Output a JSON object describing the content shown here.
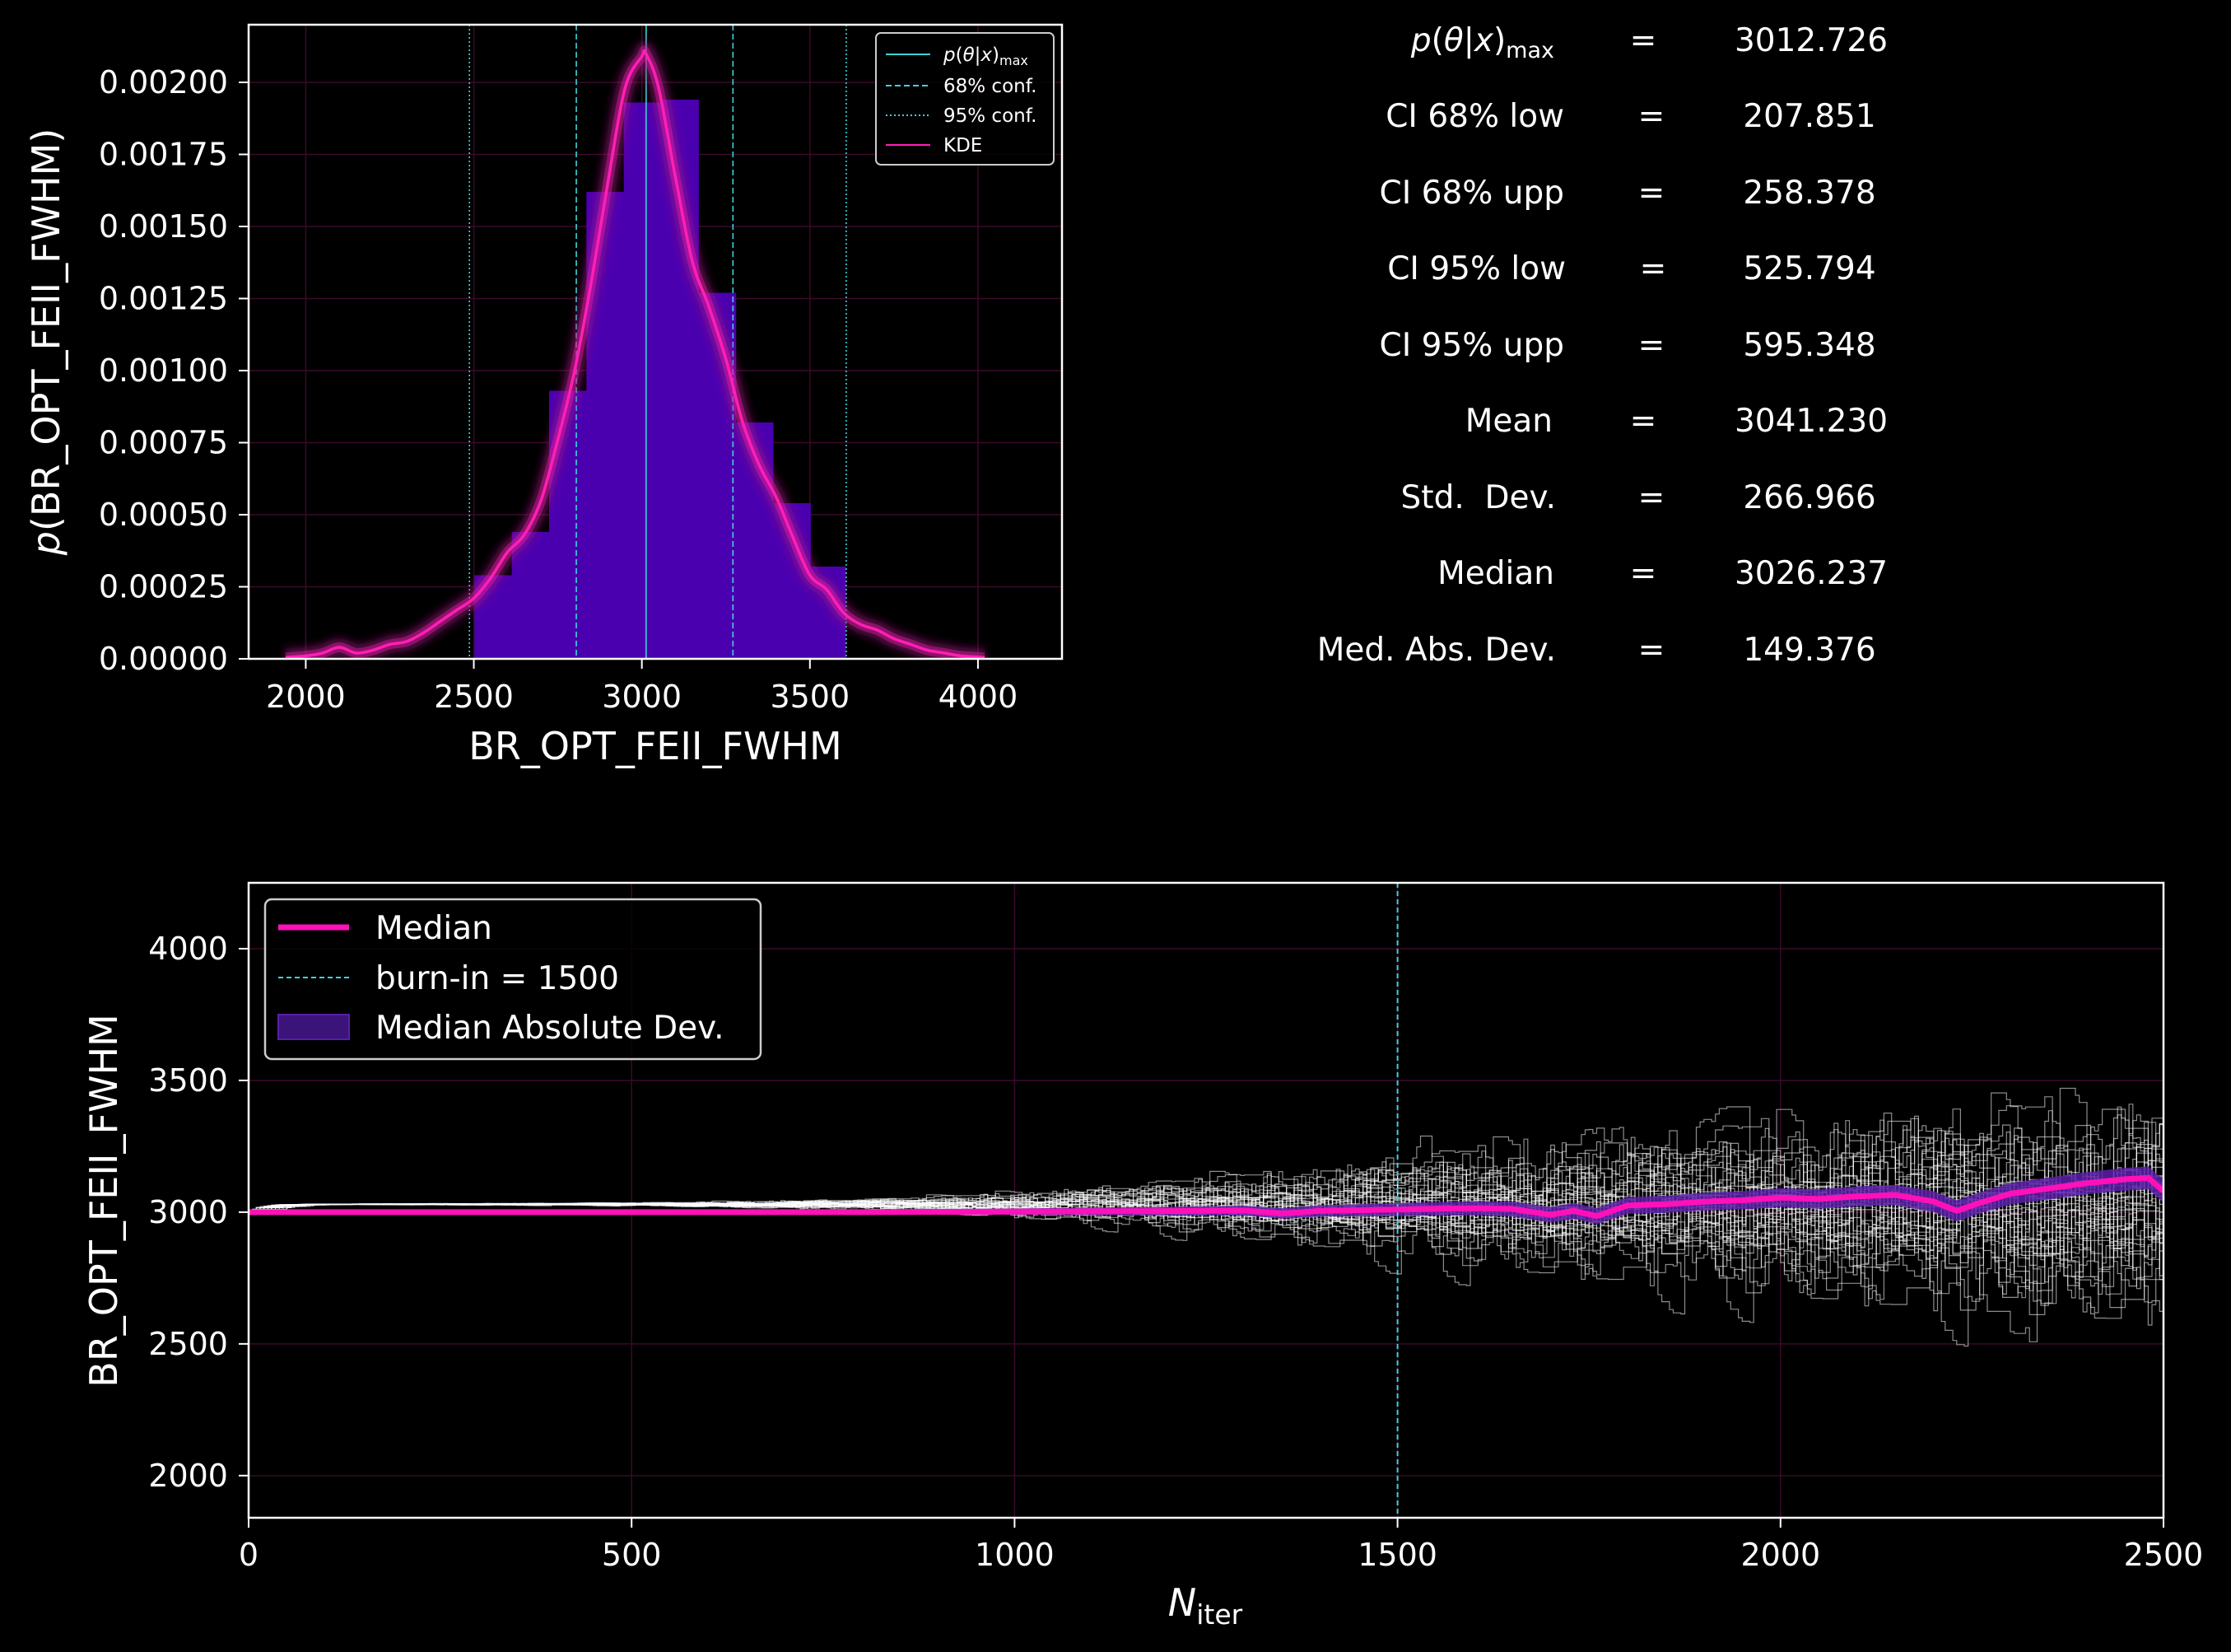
{
  "colors": {
    "background": "#000000",
    "axes": "#ffffff",
    "hist_fill": "#4b00b0",
    "kde": "#ff1fb4",
    "kde_glow": "#a01a80",
    "median": "#ff10b8",
    "mad_band": "#5a1ea8",
    "conf_lines": "#3fd3d8",
    "chains": "#ffffff",
    "grid": "#3a0a2a"
  },
  "chart_data": [
    {
      "type": "bar",
      "name": "posterior-histogram",
      "xlabel": "BR_OPT_FEII_FWHM",
      "ylabel": "p(BR_OPT_FEII_FWHM)",
      "xlim": [
        1830,
        4250
      ],
      "ylim": [
        0,
        0.0022
      ],
      "xticks": [
        2000,
        2500,
        3000,
        3500,
        4000
      ],
      "yticks": [
        "0.00000",
        "0.00025",
        "0.00050",
        "0.00075",
        "0.00100",
        "0.00125",
        "0.00150",
        "0.00175",
        "0.00200"
      ],
      "grid": true,
      "bins": [
        {
          "x0": 2502,
          "x1": 2613,
          "value": 0.00029
        },
        {
          "x0": 2613,
          "x1": 2724,
          "value": 0.00044
        },
        {
          "x0": 2724,
          "x1": 2835,
          "value": 0.00093
        },
        {
          "x0": 2835,
          "x1": 2946,
          "value": 0.00162
        },
        {
          "x0": 2946,
          "x1": 3057,
          "value": 0.00193
        },
        {
          "x0": 3057,
          "x1": 3168,
          "value": 0.00194
        },
        {
          "x0": 3168,
          "x1": 3279,
          "value": 0.00127
        },
        {
          "x0": 3279,
          "x1": 3390,
          "value": 0.00082
        },
        {
          "x0": 3390,
          "x1": 3501,
          "value": 0.00054
        },
        {
          "x0": 3501,
          "x1": 3606,
          "value": 0.00032
        }
      ],
      "kde": {
        "x": [
          1940,
          2000,
          2050,
          2100,
          2150,
          2200,
          2250,
          2300,
          2350,
          2400,
          2450,
          2500,
          2550,
          2600,
          2650,
          2700,
          2750,
          2800,
          2850,
          2900,
          2950,
          3000,
          3012,
          3050,
          3100,
          3150,
          3200,
          3250,
          3300,
          3350,
          3400,
          3450,
          3500,
          3550,
          3600,
          3650,
          3700,
          3750,
          3800,
          3850,
          3900,
          3950,
          4020
        ],
        "y": [
          5e-06,
          1e-05,
          2e-05,
          4e-05,
          2e-05,
          3e-05,
          5e-05,
          6e-05,
          9e-05,
          0.00013,
          0.00017,
          0.00021,
          0.00028,
          0.00037,
          0.00043,
          0.00055,
          0.00076,
          0.001,
          0.00131,
          0.00166,
          0.00198,
          0.00209,
          0.0021,
          0.00198,
          0.00167,
          0.00138,
          0.00122,
          0.00104,
          0.00082,
          0.00067,
          0.00056,
          0.00042,
          0.00029,
          0.00024,
          0.00016,
          0.00012,
          0.0001,
          7e-05,
          5e-05,
          3e-05,
          2e-05,
          1e-05,
          5e-06
        ]
      },
      "vlines": {
        "p_max": 3012.726,
        "conf68": [
          2805,
          3271
        ],
        "conf95": [
          2487,
          3608
        ]
      },
      "legend": {
        "position": "upper right",
        "entries": [
          {
            "label": "p(θ|x)max",
            "style": "solid",
            "color": "#3fd3d8"
          },
          {
            "label": "68% conf.",
            "style": "dashed",
            "color": "#3fd3d8"
          },
          {
            "label": "95% conf.",
            "style": "dotted",
            "color": "#3fd3d8"
          },
          {
            "label": "KDE",
            "style": "solid",
            "color": "#ff1fb4"
          }
        ]
      }
    },
    {
      "type": "line",
      "name": "chain-trace",
      "xlabel": "Niter",
      "ylabel": "BR_OPT_FEII_FWHM",
      "xlim": [
        0,
        2500
      ],
      "ylim": [
        1840,
        4250
      ],
      "xticks": [
        0,
        500,
        1000,
        1500,
        2000,
        2500
      ],
      "yticks": [
        2000,
        2500,
        3000,
        3500,
        4000
      ],
      "grid": true,
      "burn_in": 1500,
      "chain_spread": {
        "x": [
          0,
          500,
          800,
          1000,
          1200,
          1400,
          1500,
          1700,
          1900,
          2100,
          2300,
          2500
        ],
        "sd": [
          0,
          4,
          15,
          35,
          70,
          110,
          140,
          180,
          215,
          250,
          275,
          300
        ]
      },
      "median": {
        "x": [
          0,
          500,
          800,
          1000,
          1200,
          1300,
          1350,
          1400,
          1500,
          1600,
          1650,
          1700,
          1730,
          1760,
          1800,
          1850,
          1900,
          1950,
          2000,
          2050,
          2100,
          2150,
          2200,
          2230,
          2260,
          2300,
          2350,
          2400,
          2450,
          2480,
          2500
        ],
        "y": [
          3000,
          3000,
          3000,
          3002,
          3004,
          3006,
          2995,
          3005,
          3010,
          3015,
          3012,
          2990,
          3005,
          2985,
          3025,
          3030,
          3040,
          3045,
          3055,
          3050,
          3060,
          3065,
          3040,
          3005,
          3035,
          3070,
          3090,
          3110,
          3125,
          3130,
          3080
        ]
      },
      "legend": {
        "position": "upper left",
        "entries": [
          {
            "label": "Median",
            "style": "solid",
            "color": "#ff10b8"
          },
          {
            "label": "burn-in = 1500",
            "style": "dashed",
            "color": "#3fd3d8"
          },
          {
            "label": "Median Absolute Dev.",
            "style": "patch",
            "color": "#5a1ea8"
          }
        ]
      }
    }
  ],
  "stats_table": [
    {
      "label": "p(θ|x)max",
      "value": "3012.726"
    },
    {
      "label": "CI 68% low",
      "value": "207.851"
    },
    {
      "label": "CI 68% upp",
      "value": "258.378"
    },
    {
      "label": "CI 95% low",
      "value": "525.794"
    },
    {
      "label": "CI 95% upp",
      "value": "595.348"
    },
    {
      "label": "Mean",
      "value": "3041.230"
    },
    {
      "label": "Std.  Dev.",
      "value": "266.966"
    },
    {
      "label": "Median",
      "value": "3026.237"
    },
    {
      "label": "Med. Abs. Dev.",
      "value": "149.376"
    }
  ]
}
